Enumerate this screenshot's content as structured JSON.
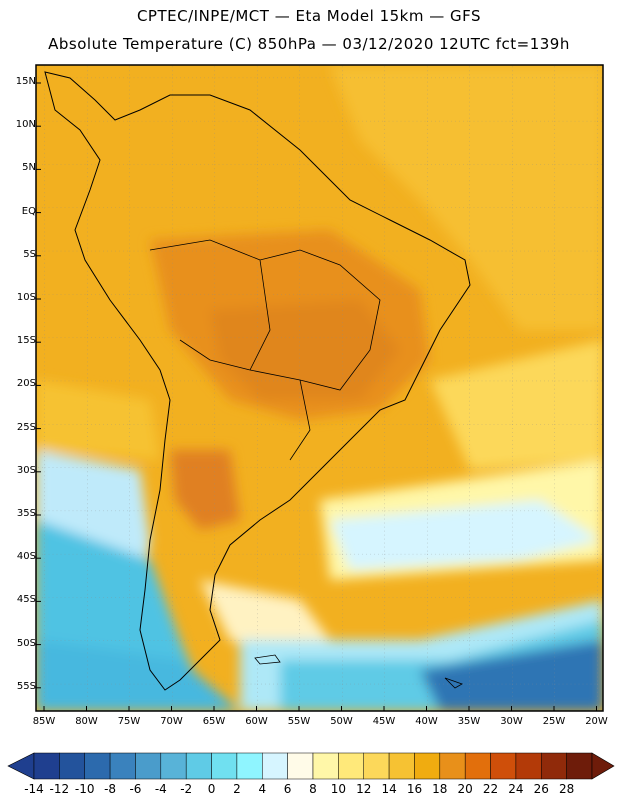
{
  "title": {
    "line1": "CPTEC/INPE/MCT  —  Eta Model 15km — GFS",
    "line2": "Absolute Temperature (C) 850hPa — 03/12/2020 12UTC fct=139h"
  },
  "lat_labels": [
    "15N",
    "10N",
    "5N",
    "EQ",
    "5S",
    "10S",
    "15S",
    "20S",
    "25S",
    "30S",
    "35S",
    "40S",
    "45S",
    "50S",
    "55S"
  ],
  "lon_labels": [
    "85W",
    "80W",
    "75W",
    "70W",
    "65W",
    "60W",
    "55W",
    "50W",
    "45W",
    "40W",
    "35W",
    "30W",
    "25W",
    "20W"
  ],
  "colorbar": {
    "labels": [
      "-14",
      "-12",
      "-10",
      "-8",
      "-6",
      "-4",
      "-2",
      "0",
      "2",
      "4",
      "6",
      "8",
      "10",
      "12",
      "14",
      "16",
      "18",
      "20",
      "22",
      "24",
      "26",
      "28"
    ],
    "colors": [
      "#1f3f8f",
      "#23539c",
      "#2c6aad",
      "#3a82bd",
      "#4a9ccb",
      "#58b3d8",
      "#5fcbe6",
      "#70e0f0",
      "#8ff5ff",
      "#d6f5ff",
      "#fffbe8",
      "#fff7a8",
      "#ffe97a",
      "#fcd85a",
      "#f6c233",
      "#f0ac10",
      "#e8901a",
      "#e26f0c",
      "#cf4f0a",
      "#b33a08",
      "#902a0a",
      "#6e1c0a"
    ]
  },
  "field_colors": {
    "ocean_cold": "#4fc3e3",
    "ocean_cool": "#aee8f7",
    "pale": "#fdf6dc",
    "yellow": "#ffe16e",
    "gold": "#f6bd2a",
    "orange": "#eaa21a",
    "hot": "#e0861e",
    "deep_blue": "#2f74b4"
  }
}
